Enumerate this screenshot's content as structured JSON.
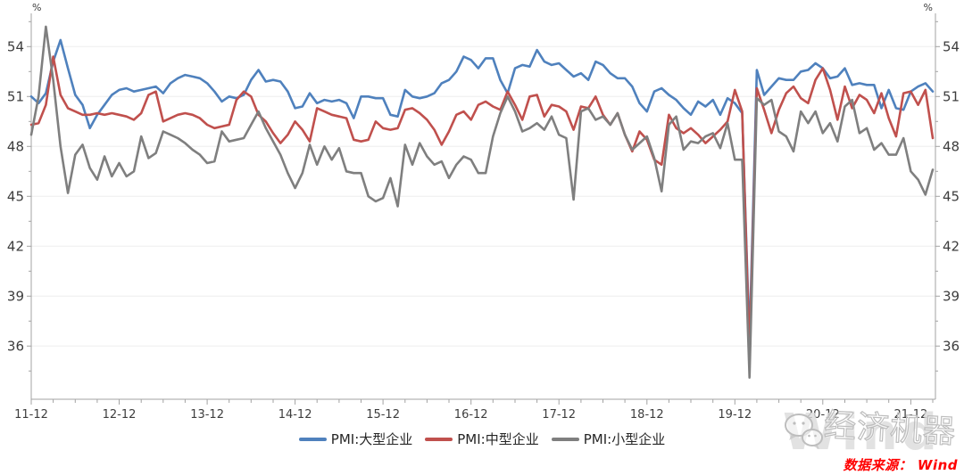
{
  "chart_data": {
    "type": "line",
    "title": "",
    "unit_label_left": "%",
    "unit_label_right": "%",
    "grid": "horizontal-only",
    "legend_position": "bottom-center",
    "ylim": [
      32.8,
      56.0
    ],
    "y_ticks": [
      36,
      39,
      42,
      45,
      48,
      51,
      54
    ],
    "x_tick_labels": [
      "11-12",
      "12-12",
      "13-12",
      "14-12",
      "15-12",
      "16-12",
      "17-12",
      "18-12",
      "19-12",
      "20-12",
      "21-12"
    ],
    "x_tick_month_indices": [
      0,
      12,
      24,
      36,
      48,
      60,
      72,
      84,
      96,
      108,
      120
    ],
    "x_minor_tick_every_months": 3,
    "x_range_months": "2011-12 to 2022-03",
    "series": [
      {
        "name": "PMI:大型企业",
        "color": "#4F81BD",
        "values": [
          51.0,
          50.6,
          51.2,
          53.1,
          54.4,
          52.7,
          51.1,
          50.5,
          49.1,
          49.9,
          50.5,
          51.1,
          51.4,
          51.5,
          51.3,
          51.4,
          51.5,
          51.6,
          51.2,
          51.8,
          52.1,
          52.3,
          52.2,
          52.1,
          51.8,
          51.3,
          50.7,
          51.0,
          50.9,
          51.1,
          52.0,
          52.6,
          51.9,
          52.0,
          51.9,
          51.3,
          50.3,
          50.4,
          51.2,
          50.6,
          50.8,
          50.7,
          50.8,
          50.6,
          49.7,
          51.0,
          51.0,
          50.9,
          50.9,
          49.9,
          49.8,
          51.4,
          51.0,
          50.9,
          51.0,
          51.2,
          51.8,
          52.0,
          52.5,
          53.4,
          53.2,
          52.7,
          53.3,
          53.3,
          52.0,
          51.2,
          52.7,
          52.9,
          52.8,
          53.8,
          53.1,
          52.9,
          53.0,
          52.6,
          52.2,
          52.4,
          52.0,
          53.1,
          52.9,
          52.4,
          52.1,
          52.1,
          51.6,
          50.6,
          50.1,
          51.3,
          51.5,
          51.1,
          50.8,
          50.3,
          49.9,
          50.7,
          50.4,
          50.8,
          49.9,
          50.9,
          50.6,
          50.0,
          36.3,
          52.6,
          51.1,
          51.6,
          52.1,
          52.0,
          52.0,
          52.5,
          52.6,
          53.0,
          52.7,
          52.1,
          52.2,
          52.7,
          51.7,
          51.8,
          51.7,
          51.7,
          50.3,
          51.4,
          50.3,
          50.2,
          51.3,
          51.6,
          51.8,
          51.3
        ]
      },
      {
        "name": "PMI:中型企业",
        "color": "#C0504D",
        "values": [
          49.3,
          49.4,
          50.5,
          53.4,
          51.1,
          50.3,
          50.1,
          49.9,
          49.9,
          50.0,
          49.9,
          50.0,
          49.9,
          49.8,
          49.6,
          50.0,
          51.1,
          51.3,
          49.5,
          49.7,
          49.9,
          50.0,
          49.9,
          49.7,
          49.3,
          49.1,
          49.2,
          49.3,
          50.8,
          51.3,
          51.0,
          49.9,
          49.5,
          48.8,
          48.2,
          48.7,
          49.5,
          49.0,
          48.3,
          50.3,
          50.1,
          49.9,
          49.8,
          49.7,
          48.4,
          48.3,
          48.4,
          49.5,
          49.1,
          49.0,
          49.1,
          50.2,
          50.3,
          50.0,
          49.6,
          49.0,
          48.1,
          48.9,
          49.9,
          50.1,
          49.6,
          50.5,
          50.7,
          50.4,
          50.2,
          51.3,
          50.5,
          49.6,
          51.0,
          51.1,
          49.8,
          50.5,
          50.4,
          50.1,
          49.0,
          50.4,
          50.3,
          51.0,
          49.9,
          49.3,
          50.0,
          48.7,
          47.7,
          48.9,
          48.4,
          47.2,
          46.9,
          49.9,
          49.1,
          48.8,
          49.1,
          48.7,
          48.2,
          48.6,
          49.0,
          49.5,
          51.4,
          50.1,
          35.5,
          51.5,
          50.2,
          48.8,
          50.2,
          51.2,
          51.6,
          50.9,
          50.6,
          52.0,
          52.7,
          51.4,
          49.6,
          51.6,
          50.3,
          51.1,
          50.8,
          50.0,
          51.2,
          49.7,
          48.6,
          51.2,
          51.3,
          50.5,
          51.4,
          48.5
        ]
      },
      {
        "name": "PMI:小型企业",
        "color": "#7F7F7F",
        "values": [
          48.7,
          51.0,
          55.2,
          52.0,
          48.0,
          45.2,
          47.5,
          48.1,
          46.7,
          46.0,
          47.4,
          46.2,
          47.0,
          46.2,
          46.5,
          48.6,
          47.3,
          47.6,
          48.9,
          48.7,
          48.5,
          48.2,
          47.8,
          47.5,
          47.0,
          47.1,
          48.9,
          48.3,
          48.4,
          48.5,
          49.3,
          50.1,
          49.1,
          48.3,
          47.5,
          46.4,
          45.5,
          46.4,
          48.1,
          46.9,
          48.0,
          47.2,
          47.9,
          46.5,
          46.4,
          46.4,
          45.0,
          44.7,
          44.9,
          46.1,
          44.4,
          48.1,
          46.9,
          48.2,
          47.4,
          46.9,
          47.1,
          46.1,
          46.9,
          47.4,
          47.2,
          46.4,
          46.4,
          48.6,
          50.0,
          51.0,
          50.1,
          48.9,
          49.1,
          49.4,
          49.0,
          49.8,
          48.7,
          48.5,
          44.8,
          50.1,
          50.3,
          49.6,
          49.8,
          49.3,
          50.0,
          48.7,
          47.8,
          48.2,
          48.6,
          47.3,
          45.3,
          49.3,
          49.8,
          47.8,
          48.3,
          48.2,
          48.6,
          48.8,
          47.9,
          49.4,
          47.2,
          47.2,
          34.1,
          50.9,
          50.5,
          50.8,
          48.9,
          48.6,
          47.7,
          50.1,
          49.4,
          50.1,
          48.8,
          49.4,
          48.3,
          50.4,
          50.8,
          48.8,
          49.1,
          47.8,
          48.2,
          47.5,
          47.5,
          48.5,
          46.5,
          46.0,
          45.1,
          46.6
        ]
      }
    ]
  },
  "watermark": {
    "brand_text": "经济机器",
    "background_text": "Wind",
    "icon": "wechat-icon"
  },
  "footer": {
    "source_text": "数据来源： Wind"
  }
}
